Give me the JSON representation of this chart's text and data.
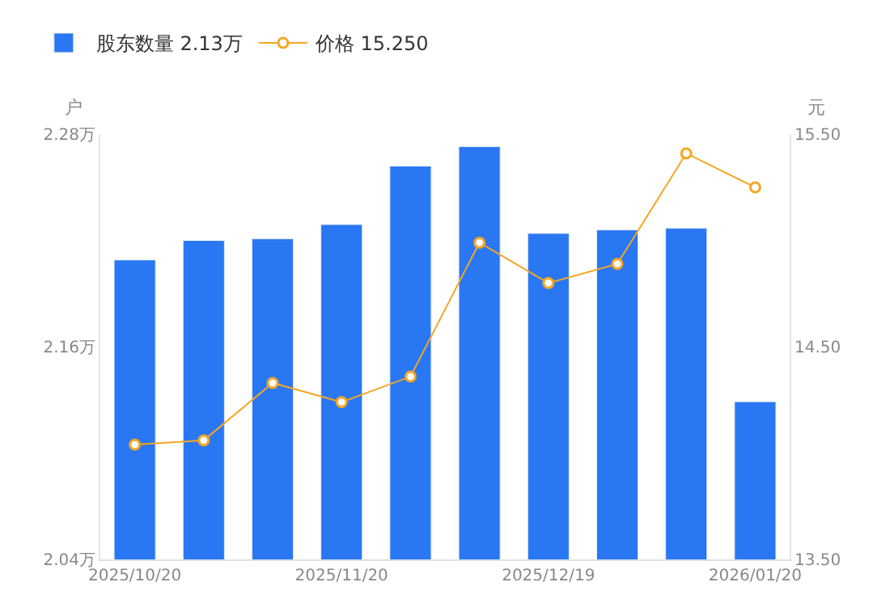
{
  "chart_data": {
    "type": "bar",
    "categories": [
      "2025/10/20",
      null,
      null,
      "2025/11/20",
      null,
      null,
      "2025/12/19",
      null,
      null,
      "2026/01/20"
    ],
    "series": [
      {
        "name": "股东数量 2.13万",
        "color": "#2a77f4",
        "values": [
          2.209,
          2.22,
          2.221,
          2.229,
          2.262,
          2.273,
          2.224,
          2.226,
          2.227,
          2.129
        ]
      },
      {
        "name": "价格 15.250",
        "type": "line",
        "axis": "y2",
        "color": "#f5a623",
        "marker": "circle",
        "values": [
          14.04,
          14.06,
          14.33,
          14.24,
          14.36,
          14.99,
          14.8,
          14.89,
          15.41,
          15.25
        ]
      }
    ],
    "ylabel": "户",
    "y2label": "元",
    "ylim": [
      2.04,
      2.28
    ],
    "yticks": [
      {
        "value": 2.04,
        "label": "2.04万"
      },
      {
        "value": 2.16,
        "label": "2.16万"
      },
      {
        "value": 2.28,
        "label": "2.28万"
      }
    ],
    "y2lim": [
      13.5,
      15.5
    ],
    "y2ticks": [
      {
        "value": 13.5,
        "label": "13.50"
      },
      {
        "value": 14.5,
        "label": "14.50"
      },
      {
        "value": 15.5,
        "label": "15.50"
      }
    ],
    "legend": "top left"
  }
}
